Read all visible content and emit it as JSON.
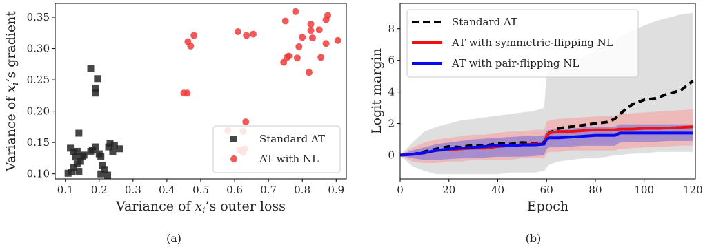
{
  "captions": {
    "a": "(a)",
    "b": "(b)"
  },
  "chart_data": [
    {
      "type": "scatter",
      "xlabel_prefix": "Variance of ",
      "xlabel_var": "x",
      "xlabel_sub": "i",
      "xlabel_suffix": "’s outer loss",
      "ylabel_prefix": "Variance of ",
      "ylabel_var": "x",
      "ylabel_sub": "i",
      "ylabel_suffix": "’s gradient",
      "xlim": [
        0.07,
        0.93
      ],
      "ylim": [
        0.092,
        0.372
      ],
      "xticks": [
        0.1,
        0.2,
        0.3,
        0.4,
        0.5,
        0.6,
        0.7,
        0.8,
        0.9
      ],
      "xtick_labels": [
        "0.1",
        "0.2",
        "0.3",
        "0.4",
        "0.5",
        "0.6",
        "0.7",
        "0.8",
        "0.9"
      ],
      "yticks": [
        0.1,
        0.15,
        0.2,
        0.25,
        0.3,
        0.35
      ],
      "ytick_labels": [
        "0.10",
        "0.15",
        "0.20",
        "0.25",
        "0.30",
        "0.35"
      ],
      "grid": false,
      "legend_position": "lower-right",
      "series": [
        {
          "name": "Standard AT",
          "marker": "square",
          "color": "#262626",
          "points": [
            [
              0.175,
              0.268
            ],
            [
              0.195,
              0.252
            ],
            [
              0.19,
              0.237
            ],
            [
              0.19,
              0.229
            ],
            [
              0.14,
              0.165
            ],
            [
              0.115,
              0.141
            ],
            [
              0.125,
              0.135
            ],
            [
              0.135,
              0.136
            ],
            [
              0.13,
              0.127
            ],
            [
              0.15,
              0.128
            ],
            [
              0.155,
              0.13
            ],
            [
              0.145,
              0.12
            ],
            [
              0.135,
              0.116
            ],
            [
              0.125,
              0.11
            ],
            [
              0.118,
              0.103
            ],
            [
              0.108,
              0.101
            ],
            [
              0.14,
              0.104
            ],
            [
              0.175,
              0.136
            ],
            [
              0.18,
              0.138
            ],
            [
              0.19,
              0.143
            ],
            [
              0.205,
              0.128
            ],
            [
              0.21,
              0.114
            ],
            [
              0.215,
              0.107
            ],
            [
              0.205,
              0.1
            ],
            [
              0.225,
              0.098
            ],
            [
              0.228,
              0.143
            ],
            [
              0.232,
              0.149
            ],
            [
              0.24,
              0.135
            ],
            [
              0.245,
              0.145
            ],
            [
              0.26,
              0.14
            ],
            [
              0.2,
              0.132
            ]
          ]
        },
        {
          "name": "AT with NL",
          "marker": "circle",
          "color": "#ee3b3b",
          "points": [
            [
              0.78,
              0.359
            ],
            [
              0.875,
              0.353
            ],
            [
              0.87,
              0.346
            ],
            [
              0.75,
              0.344
            ],
            [
              0.825,
              0.339
            ],
            [
              0.825,
              0.329
            ],
            [
              0.8,
              0.318
            ],
            [
              0.85,
              0.33
            ],
            [
              0.905,
              0.313
            ],
            [
              0.83,
              0.317
            ],
            [
              0.61,
              0.327
            ],
            [
              0.635,
              0.321
            ],
            [
              0.655,
              0.323
            ],
            [
              0.48,
              0.321
            ],
            [
              0.462,
              0.311
            ],
            [
              0.47,
              0.304
            ],
            [
              0.87,
              0.308
            ],
            [
              0.79,
              0.303
            ],
            [
              0.76,
              0.288
            ],
            [
              0.755,
              0.286
            ],
            [
              0.745,
              0.278
            ],
            [
              0.785,
              0.285
            ],
            [
              0.855,
              0.286
            ],
            [
              0.82,
              0.262
            ],
            [
              0.45,
              0.229
            ],
            [
              0.46,
              0.229
            ],
            [
              0.633,
              0.183
            ],
            [
              0.58,
              0.169
            ],
            [
              0.625,
              0.168
            ],
            [
              0.615,
              0.138
            ],
            [
              0.625,
              0.134
            ],
            [
              0.63,
              0.14
            ]
          ]
        }
      ]
    },
    {
      "type": "line",
      "xlabel": "Epoch",
      "ylabel": "Logit margin",
      "xlim": [
        0,
        121
      ],
      "ylim": [
        -1.5,
        9.6
      ],
      "xticks": [
        0,
        20,
        40,
        60,
        80,
        100,
        120
      ],
      "xtick_labels": [
        "0",
        "20",
        "40",
        "60",
        "80",
        "100",
        "120"
      ],
      "yticks": [
        0,
        2,
        4,
        6,
        8
      ],
      "ytick_labels": [
        "0",
        "2",
        "4",
        "6",
        "8"
      ],
      "grid": false,
      "legend_position": "top-left",
      "x": [
        0,
        5,
        10,
        15,
        20,
        25,
        30,
        35,
        40,
        45,
        50,
        55,
        59,
        60,
        61,
        65,
        70,
        75,
        80,
        85,
        88,
        90,
        95,
        100,
        105,
        110,
        115,
        120
      ],
      "series": [
        {
          "name": "Standard AT",
          "color": "#000000",
          "style": "dashed",
          "values": [
            0,
            0.05,
            0.22,
            0.4,
            0.55,
            0.5,
            0.65,
            0.6,
            0.75,
            0.7,
            0.8,
            0.75,
            0.8,
            1.2,
            1.4,
            1.7,
            1.8,
            1.9,
            2.0,
            2.1,
            2.3,
            2.6,
            3.2,
            3.5,
            3.6,
            3.9,
            4.1,
            4.7
          ],
          "band_lower": [
            0,
            -0.7,
            -1.0,
            -1.2,
            -1.2,
            -1.2,
            -1.2,
            -1.2,
            -1.2,
            -1.1,
            -1.1,
            -1.1,
            -1.0,
            -0.8,
            -0.6,
            -0.4,
            -0.3,
            -0.2,
            -0.2,
            -0.1,
            0.0,
            0.0,
            0.1,
            0.1,
            0.2,
            0.2,
            0.2,
            0.2
          ],
          "band_upper": [
            0,
            0.8,
            1.5,
            1.8,
            2.0,
            2.2,
            2.3,
            2.4,
            2.5,
            2.6,
            2.7,
            2.8,
            3.0,
            5.0,
            5.5,
            5.7,
            5.9,
            6.2,
            6.6,
            7.0,
            7.2,
            7.5,
            7.9,
            8.2,
            8.5,
            8.7,
            8.9,
            9.0
          ],
          "band_color": "#d9d9d9"
        },
        {
          "name": "AT with symmetric-flipping NL",
          "color": "#ee1111",
          "style": "solid",
          "values": [
            0,
            0.05,
            0.15,
            0.3,
            0.35,
            0.4,
            0.45,
            0.45,
            0.55,
            0.6,
            0.65,
            0.7,
            0.7,
            1.2,
            1.4,
            1.5,
            1.5,
            1.55,
            1.6,
            1.6,
            1.6,
            1.65,
            1.65,
            1.7,
            1.7,
            1.72,
            1.75,
            1.8
          ],
          "band_lower": [
            0,
            -0.4,
            -0.5,
            -0.5,
            -0.4,
            -0.4,
            -0.3,
            -0.3,
            -0.3,
            -0.3,
            -0.2,
            -0.2,
            -0.2,
            0.1,
            0.2,
            0.2,
            0.3,
            0.3,
            0.3,
            0.3,
            0.3,
            0.4,
            0.45,
            0.5,
            0.5,
            0.55,
            0.6,
            0.6
          ],
          "band_upper": [
            0,
            0.5,
            0.8,
            1.0,
            1.1,
            1.2,
            1.3,
            1.3,
            1.4,
            1.5,
            1.5,
            1.6,
            1.6,
            2.1,
            2.2,
            2.3,
            2.35,
            2.4,
            2.45,
            2.5,
            2.5,
            2.6,
            2.65,
            2.7,
            2.75,
            2.8,
            2.85,
            2.9
          ],
          "band_color": "#f2a8a8"
        },
        {
          "name": "AT with pair-flipping NL",
          "color": "#0a0aee",
          "style": "solid",
          "values": [
            0,
            0.05,
            0.15,
            0.3,
            0.4,
            0.45,
            0.5,
            0.55,
            0.6,
            0.6,
            0.65,
            0.65,
            0.7,
            1.0,
            1.1,
            1.1,
            1.15,
            1.2,
            1.25,
            1.25,
            1.25,
            1.4,
            1.4,
            1.4,
            1.4,
            1.4,
            1.4,
            1.4
          ],
          "band_lower": [
            0,
            -0.2,
            -0.3,
            -0.3,
            -0.25,
            -0.2,
            -0.2,
            -0.15,
            -0.1,
            -0.1,
            -0.1,
            -0.05,
            0.0,
            0.4,
            0.5,
            0.5,
            0.55,
            0.6,
            0.6,
            0.6,
            0.6,
            0.8,
            0.85,
            0.85,
            0.85,
            0.9,
            0.9,
            0.9
          ],
          "band_upper": [
            0,
            0.3,
            0.5,
            0.7,
            0.8,
            0.9,
            1.0,
            1.05,
            1.1,
            1.15,
            1.2,
            1.2,
            1.25,
            1.5,
            1.6,
            1.65,
            1.7,
            1.75,
            1.8,
            1.8,
            1.8,
            1.95,
            1.95,
            1.95,
            1.95,
            1.95,
            1.95,
            1.95
          ],
          "band_color": "#8a7ad6"
        }
      ]
    }
  ]
}
